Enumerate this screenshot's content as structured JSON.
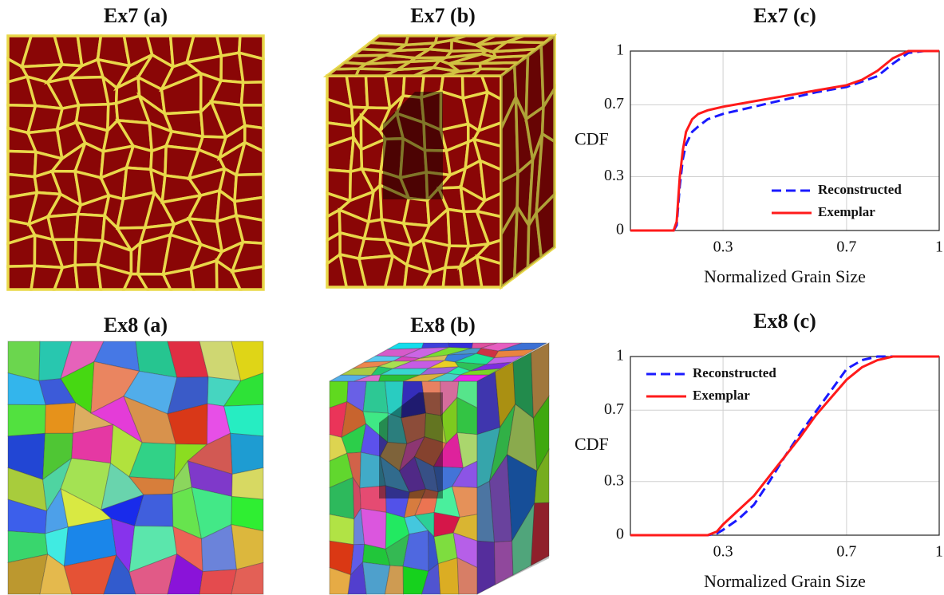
{
  "image_panels": [
    {
      "title": "Ex7 (a)"
    },
    {
      "title": "Ex7 (b)"
    },
    {
      "title": "Ex8 (a)"
    },
    {
      "title": "Ex8 (b)"
    }
  ],
  "chart_data": [
    {
      "type": "line",
      "title": "Ex7 (c)",
      "xlabel": "Normalized Grain Size",
      "ylabel": "CDF",
      "x": [
        0,
        0.14,
        0.15,
        0.16,
        0.17,
        0.18,
        0.2,
        0.22,
        0.25,
        0.3,
        0.4,
        0.5,
        0.6,
        0.7,
        0.75,
        0.8,
        0.85,
        0.9,
        0.95,
        1
      ],
      "series": [
        {
          "name": "Reconstructed",
          "color": "#1a1aff",
          "style": "dashed",
          "values": [
            0,
            0,
            0.03,
            0.25,
            0.4,
            0.48,
            0.55,
            0.58,
            0.62,
            0.65,
            0.69,
            0.73,
            0.77,
            0.8,
            0.83,
            0.86,
            0.93,
            0.99,
            1,
            1
          ]
        },
        {
          "name": "Exemplar",
          "color": "#ff1a1a",
          "style": "solid",
          "values": [
            0,
            0,
            0.05,
            0.3,
            0.45,
            0.55,
            0.62,
            0.65,
            0.67,
            0.69,
            0.72,
            0.75,
            0.78,
            0.81,
            0.84,
            0.89,
            0.96,
            1,
            1,
            1
          ]
        }
      ],
      "xlim": [
        0,
        1
      ],
      "ylim": [
        0,
        1
      ],
      "xticks": [
        0.3,
        0.7,
        1
      ],
      "yticks": [
        0,
        0.3,
        0.7,
        1
      ],
      "grid": true,
      "legend": "lower right"
    },
    {
      "type": "line",
      "title": "Ex8 (c)",
      "xlabel": "Normalized Grain Size",
      "ylabel": "CDF",
      "x": [
        0,
        0.2,
        0.25,
        0.28,
        0.3,
        0.35,
        0.4,
        0.45,
        0.5,
        0.55,
        0.6,
        0.65,
        0.7,
        0.75,
        0.8,
        0.85,
        0.9,
        1
      ],
      "series": [
        {
          "name": "Reconstructed",
          "color": "#1a1aff",
          "style": "dashed",
          "values": [
            0,
            0,
            0,
            0.01,
            0.03,
            0.09,
            0.17,
            0.3,
            0.44,
            0.57,
            0.69,
            0.81,
            0.93,
            0.98,
            1,
            1,
            1,
            1
          ]
        },
        {
          "name": "Exemplar",
          "color": "#ff1a1a",
          "style": "solid",
          "values": [
            0,
            0,
            0,
            0.02,
            0.06,
            0.14,
            0.22,
            0.33,
            0.44,
            0.55,
            0.67,
            0.77,
            0.87,
            0.94,
            0.98,
            1,
            1,
            1
          ]
        }
      ],
      "xlim": [
        0,
        1
      ],
      "ylim": [
        0,
        1
      ],
      "xticks": [
        0.3,
        0.7,
        1
      ],
      "yticks": [
        0,
        0.3,
        0.7,
        1
      ],
      "grid": true,
      "legend": "upper left"
    }
  ]
}
